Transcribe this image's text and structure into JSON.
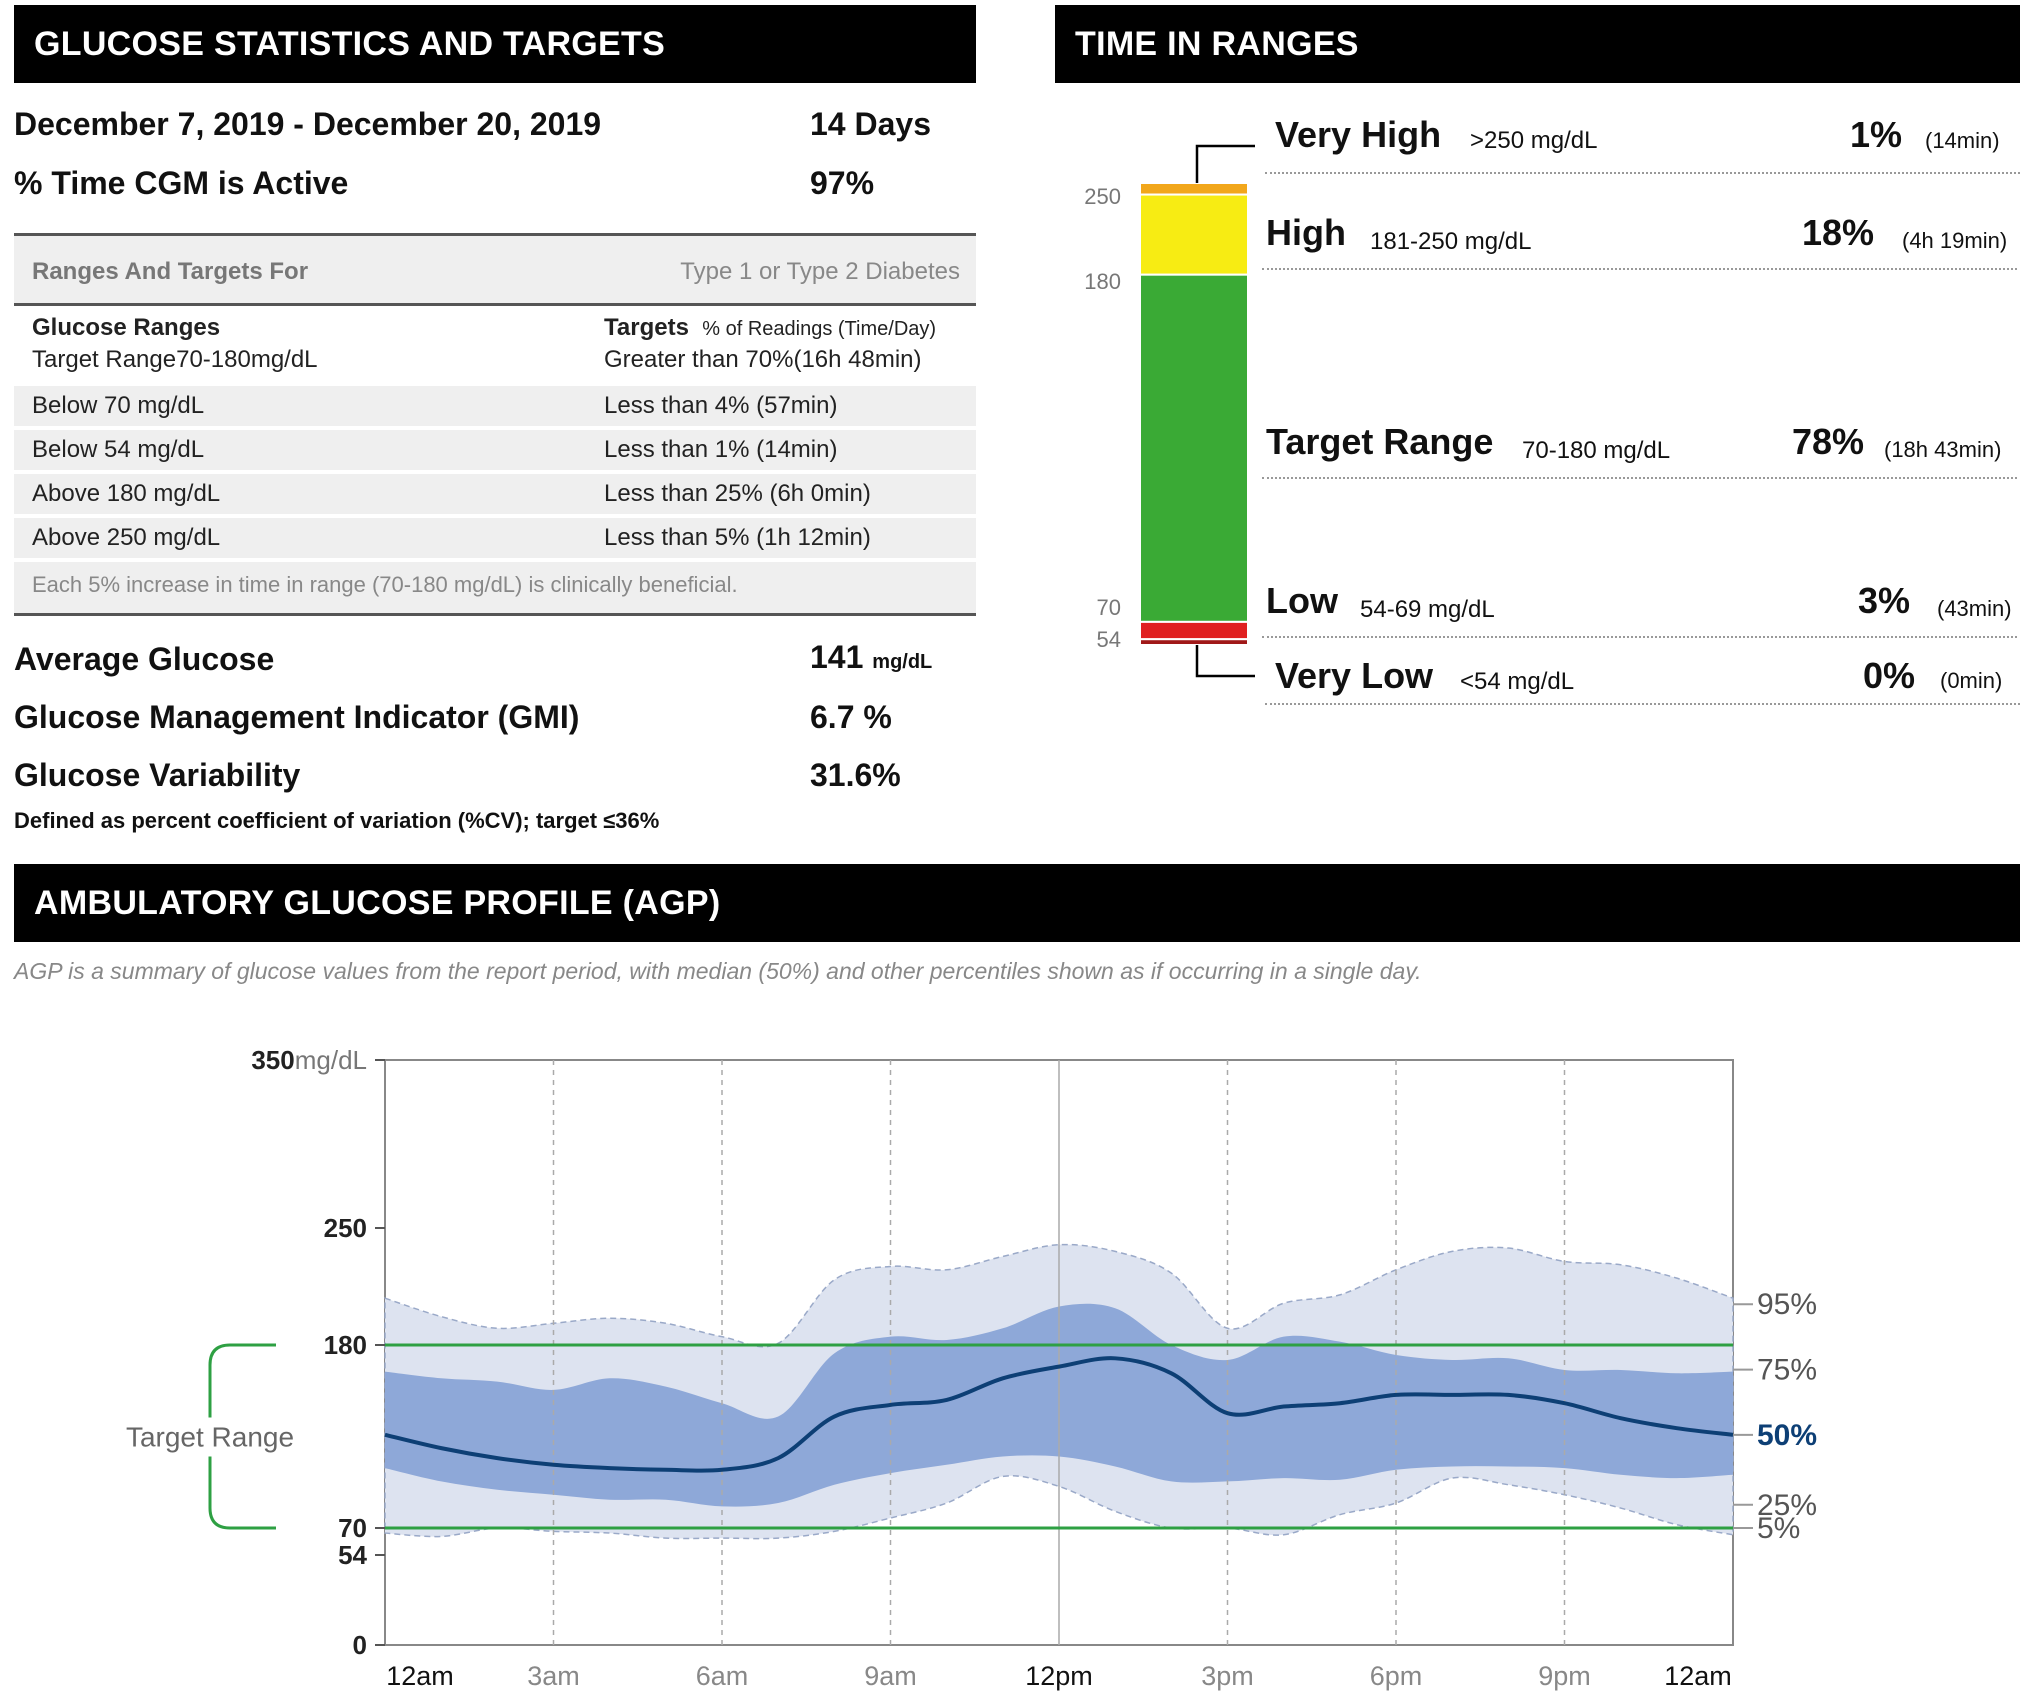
{
  "stats": {
    "header": "GLUCOSE STATISTICS AND TARGETS",
    "date_range": "December 7, 2019 - December 20, 2019",
    "days": "14 Days",
    "cgm_active_label": "% Time CGM is Active",
    "cgm_active_value": "97%",
    "targets_header_left": "Ranges And Targets For",
    "targets_header_right": "Type 1 or Type 2 Diabetes",
    "col_ranges": "Glucose Ranges",
    "col_targets": "Targets",
    "col_targets_sub": "% of Readings (Time/Day)",
    "rows": [
      {
        "range": "Target Range70-180mg/dL",
        "target": "Greater than 70%(16h 48min)"
      },
      {
        "range": "Below 70 mg/dL",
        "target": "Less than 4% (57min)"
      },
      {
        "range": "Below 54 mg/dL",
        "target": "Less than 1% (14min)"
      },
      {
        "range": "Above 180 mg/dL",
        "target": "Less than 25% (6h 0min)"
      },
      {
        "range": "Above 250 mg/dL",
        "target": "Less than 5% (1h 12min)"
      }
    ],
    "note": "Each 5% increase in time in range (70-180 mg/dL) is clinically beneficial.",
    "avg_label": "Average Glucose",
    "avg_value": "141",
    "avg_unit": "mg/dL",
    "gmi_label": "Glucose Management Indicator (GMI)",
    "gmi_value": "6.7 %",
    "gv_label": "Glucose Variability",
    "gv_value": "31.6%",
    "gv_note": "Defined as percent coefficient of variation (%CV); target ≤36%"
  },
  "tir": {
    "header": "TIME IN RANGES",
    "axis_labels": [
      "250",
      "180",
      "70",
      "54"
    ],
    "rows": [
      {
        "name": "Very High",
        "range": ">250 mg/dL",
        "pct": "1%",
        "time": "(14min)",
        "pct_value": 1,
        "color": "#f2a71b"
      },
      {
        "name": "High",
        "range": "181-250 mg/dL",
        "pct": "18%",
        "time": "(4h 19min)",
        "pct_value": 18,
        "color": "#f7ec13"
      },
      {
        "name": "Target Range",
        "range": "70-180 mg/dL",
        "pct": "78%",
        "time": "(18h 43min)",
        "pct_value": 78,
        "color": "#3aaa35"
      },
      {
        "name": "Low",
        "range": "54-69 mg/dL",
        "pct": "3%",
        "time": "(43min)",
        "pct_value": 3,
        "color": "#e02020"
      },
      {
        "name": "Very Low",
        "range": "<54 mg/dL",
        "pct": "0%",
        "time": "(0min)",
        "pct_value": 0,
        "color": "#a01818"
      }
    ]
  },
  "agp": {
    "header": "AMBULATORY GLUCOSE PROFILE (AGP)",
    "subtitle": "AGP is a summary of glucose values from the report period, with median (50%) and other percentiles shown as if occurring in a single day.",
    "target_range_label": "Target Range"
  },
  "chart_data": {
    "type": "area",
    "y_unit": "mg/dL",
    "y_ticks": [
      "350",
      "250",
      "180",
      "70",
      "54",
      "0"
    ],
    "y_tick_values": [
      350,
      250,
      180,
      70,
      54,
      0
    ],
    "ylim": [
      0,
      350
    ],
    "x_labels": [
      "12am",
      "3am",
      "6am",
      "9am",
      "12pm",
      "3pm",
      "6pm",
      "9pm",
      "12am"
    ],
    "x_hours": [
      0,
      1,
      2,
      3,
      4,
      5,
      6,
      7,
      8,
      9,
      10,
      11,
      12,
      13,
      14,
      15,
      16,
      17,
      18,
      19,
      20,
      21,
      22,
      23,
      24
    ],
    "target_low": 70,
    "target_high": 180,
    "series": [
      {
        "name": "95%",
        "values": [
          208,
          197,
          190,
          193,
          196,
          193,
          185,
          181,
          219,
          227,
          225,
          233,
          240,
          236,
          223,
          190,
          205,
          210,
          225,
          236,
          238,
          230,
          228,
          220,
          208
        ]
      },
      {
        "name": "75%",
        "values": [
          164,
          160,
          158,
          153,
          160,
          155,
          145,
          137,
          175,
          185,
          183,
          190,
          203,
          202,
          180,
          171,
          185,
          182,
          174,
          171,
          172,
          165,
          165,
          163,
          164
        ]
      },
      {
        "name": "50%",
        "values": [
          126,
          118,
          112,
          108,
          106,
          105,
          105,
          112,
          137,
          144,
          147,
          160,
          167,
          172,
          163,
          139,
          143,
          145,
          150,
          150,
          150,
          145,
          136,
          130,
          126
        ]
      },
      {
        "name": "25%",
        "values": [
          106,
          98,
          93,
          90,
          87,
          87,
          83,
          85,
          96,
          103,
          108,
          113,
          113,
          107,
          98,
          98,
          100,
          99,
          105,
          107,
          107,
          106,
          102,
          100,
          102
        ]
      },
      {
        "name": "5%",
        "values": [
          67,
          65,
          70,
          68,
          67,
          64,
          64,
          64,
          68,
          76,
          85,
          101,
          95,
          80,
          70,
          70,
          66,
          78,
          85,
          100,
          96,
          90,
          82,
          72,
          66
        ]
      }
    ],
    "percentile_labels": [
      "95%",
      "75%",
      "50%",
      "25%",
      "5%"
    ]
  }
}
